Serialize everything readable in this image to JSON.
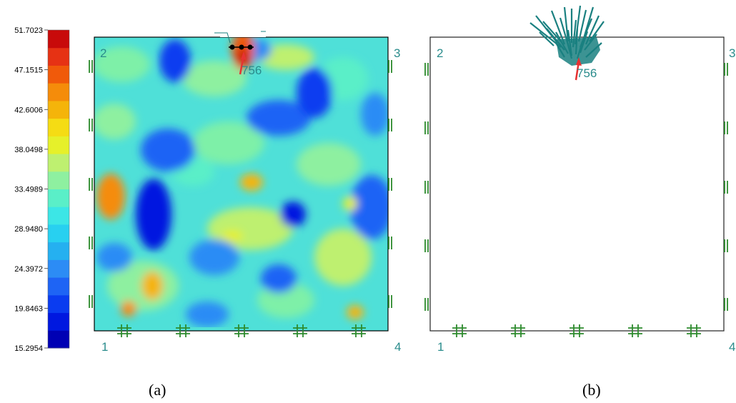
{
  "colorbar": {
    "ticks": [
      "51.7023",
      "47.1515",
      "42.6006",
      "38.0498",
      "33.4989",
      "28.9480",
      "24.3972",
      "19.8463",
      "15.2954"
    ],
    "colors": [
      "#0000b4",
      "#0018e0",
      "#0a3cf0",
      "#1e64f5",
      "#2c8cf5",
      "#25b0f0",
      "#28d0f0",
      "#3ce6e6",
      "#5aefc8",
      "#8ef0a0",
      "#bef070",
      "#e6f02a",
      "#f5dc14",
      "#f5b40a",
      "#f58c0a",
      "#f05a0a",
      "#e63214",
      "#c80a0a"
    ]
  },
  "panel_a": {
    "node_labels": [
      "1",
      "2",
      "3",
      "4"
    ],
    "element_label": "756",
    "caption": "(a)"
  },
  "panel_b": {
    "node_labels": [
      "1",
      "2",
      "3",
      "4"
    ],
    "element_label": "756",
    "caption": "(b)"
  },
  "styles": {
    "frame_color": "#000000",
    "support_color": "#2e8b2e",
    "label_color": "#2a8c8c",
    "arrow_color": "#e63232",
    "vector_color": "#1a8080"
  }
}
